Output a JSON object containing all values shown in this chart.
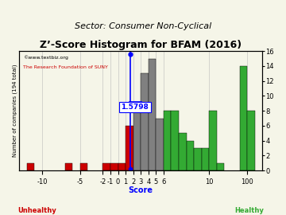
{
  "title": "Z’-Score Histogram for BFAM (2016)",
  "subtitle": "Sector: Consumer Non-Cyclical",
  "watermark1": "©www.textbiz.org",
  "watermark2": "The Research Foundation of SUNY",
  "xlabel": "Score",
  "ylabel": "Number of companies (194 total)",
  "zlabel_unhealthy": "Unhealthy",
  "zlabel_healthy": "Healthy",
  "bfam_score": 1.5798,
  "bfam_label": "1.5798",
  "bins_data": [
    [
      -12,
      -11,
      1,
      "#cc0000"
    ],
    [
      -11,
      -10,
      0,
      "#cc0000"
    ],
    [
      -10,
      -9,
      0,
      "#cc0000"
    ],
    [
      -9,
      -8,
      0,
      "#cc0000"
    ],
    [
      -8,
      -7,
      0,
      "#cc0000"
    ],
    [
      -7,
      -6,
      1,
      "#cc0000"
    ],
    [
      -6,
      -5,
      0,
      "#cc0000"
    ],
    [
      -5,
      -4,
      1,
      "#cc0000"
    ],
    [
      -4,
      -3,
      0,
      "#cc0000"
    ],
    [
      -3,
      -2,
      0,
      "#cc0000"
    ],
    [
      -2,
      -1,
      1,
      "#cc0000"
    ],
    [
      -1,
      0,
      1,
      "#cc0000"
    ],
    [
      0,
      1,
      1,
      "#cc0000"
    ],
    [
      1,
      2,
      6,
      "#cc0000"
    ],
    [
      2,
      3,
      9,
      "#808080"
    ],
    [
      3,
      4,
      13,
      "#808080"
    ],
    [
      4,
      5,
      15,
      "#808080"
    ],
    [
      5,
      6,
      7,
      "#808080"
    ],
    [
      6,
      7,
      8,
      "#33aa33"
    ],
    [
      7,
      8,
      8,
      "#33aa33"
    ],
    [
      8,
      9,
      5,
      "#33aa33"
    ],
    [
      9,
      10,
      4,
      "#33aa33"
    ],
    [
      10,
      11,
      3,
      "#33aa33"
    ],
    [
      11,
      12,
      3,
      "#33aa33"
    ],
    [
      12,
      13,
      8,
      "#33aa33"
    ],
    [
      13,
      14,
      1,
      "#33aa33"
    ],
    [
      14,
      15,
      0,
      "#33aa33"
    ],
    [
      15,
      16,
      0,
      "#33aa33"
    ],
    [
      16,
      17,
      14,
      "#33aa33"
    ],
    [
      17,
      18,
      8,
      "#33aa33"
    ]
  ],
  "xlim": [
    -13,
    19
  ],
  "ylim": [
    0,
    16
  ],
  "bg_color": "#f5f5e8",
  "grid_color": "#bbbbbb",
  "title_fontsize": 9,
  "subtitle_fontsize": 8,
  "axis_fontsize": 7,
  "tick_fontsize": 6,
  "xtick_positions": [
    -10,
    -5,
    -2,
    -1,
    0,
    1,
    2,
    3,
    4,
    5,
    6,
    10,
    100
  ],
  "xtick_labels": [
    "-10",
    "-5",
    "-2",
    "-1",
    "0",
    "1",
    "2",
    "3",
    "4",
    "5",
    "6",
    "10",
    "100"
  ],
  "ytick_positions": [
    0,
    2,
    4,
    6,
    8,
    10,
    12,
    14,
    16
  ],
  "ytick_labels": [
    "0",
    "2",
    "4",
    "6",
    "8",
    "10",
    "12",
    "14",
    "16"
  ]
}
